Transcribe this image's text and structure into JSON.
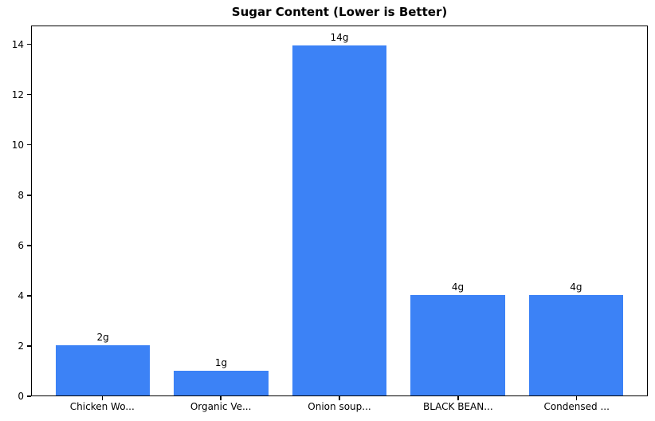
{
  "figure": {
    "background": "#ffffff"
  },
  "chart_data": {
    "type": "bar",
    "title": "Sugar Content (Lower is Better)",
    "categories": [
      "Chicken Wo...",
      "Organic Ve...",
      "Onion soup...",
      "BLACK BEAN...",
      "Condensed ..."
    ],
    "values": [
      2,
      1,
      14,
      4,
      4
    ],
    "bar_labels": [
      "2g",
      "1g",
      "14g",
      "4g",
      "4g"
    ],
    "xlabel": "",
    "ylabel": "",
    "y_ticks": [
      0,
      2,
      4,
      6,
      8,
      10,
      12,
      14
    ],
    "ylim": [
      0,
      14.75
    ],
    "xlim": [
      -0.6,
      4.6
    ],
    "bar_width": 0.8,
    "bar_color": "#3c82f6",
    "axis_color": "#000000",
    "text_color": "#000000",
    "grid": false,
    "legend": null
  }
}
